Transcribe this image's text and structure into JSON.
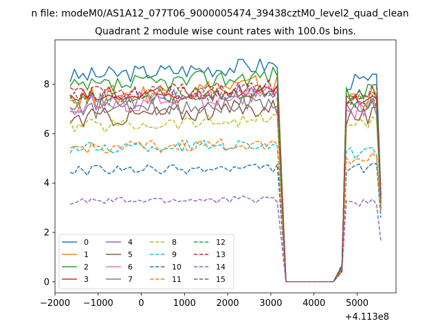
{
  "chart_data": {
    "type": "line",
    "suptitle": "n file: modeM0/AS1A12_077T06_9000005474_39438cztM0_level2_quad_clean",
    "title": "Quadrant 2 module wise count rates with 100.0s bins.",
    "xlabel": "",
    "ylabel": "",
    "x_offset_label": "+4.113e8",
    "xlim": [
      -2000,
      5900
    ],
    "ylim": [
      -0.45,
      9.8
    ],
    "xticks": [
      -2000,
      -1000,
      0,
      1000,
      2000,
      3000,
      4000,
      5000
    ],
    "xtick_labels": [
      "−2000",
      "−1000",
      "0",
      "1000",
      "2000",
      "3000",
      "4000",
      "5000"
    ],
    "yticks": [
      0,
      2,
      4,
      6,
      8
    ],
    "ytick_labels": [
      "0",
      "2",
      "4",
      "6",
      "8"
    ],
    "grid": false,
    "legend_position": "lower-left",
    "legend_columns": 4,
    "segments": {
      "first": {
        "x_start": -1650,
        "x_end": 3150,
        "step": 100
      },
      "drop": {
        "x_end": 3350
      },
      "zero": {
        "x_start": 3350,
        "x_end": 4450
      },
      "second": {
        "x_start": 4650,
        "x_end": 5550,
        "step": 100
      }
    },
    "series": [
      {
        "name": "0",
        "color": "#1f77b4",
        "dashed": false,
        "level": 8.3,
        "noise": 0.35,
        "rise": 0.5,
        "second_level": 8.1,
        "end_value": 3.6
      },
      {
        "name": "1",
        "color": "#ff7f0e",
        "dashed": false,
        "level": 7.4,
        "noise": 0.45,
        "rise": 0.6,
        "second_level": 7.5,
        "end_value": 2.9
      },
      {
        "name": "2",
        "color": "#2ca02c",
        "dashed": false,
        "level": 7.8,
        "noise": 0.4,
        "rise": 0.6,
        "second_level": 7.6,
        "end_value": 3.5
      },
      {
        "name": "3",
        "color": "#d62728",
        "dashed": false,
        "level": 7.4,
        "noise": 0.25,
        "rise": 0.3,
        "second_level": 7.3,
        "end_value": 3.3
      },
      {
        "name": "4",
        "color": "#9467bd",
        "dashed": false,
        "level": 7.2,
        "noise": 0.35,
        "rise": 0.5,
        "second_level": 7.1,
        "end_value": 3.2
      },
      {
        "name": "5",
        "color": "#8c564b",
        "dashed": false,
        "level": 6.6,
        "noise": 0.4,
        "rise": 0.5,
        "second_level": 6.7,
        "end_value": 3.0
      },
      {
        "name": "6",
        "color": "#e377c2",
        "dashed": false,
        "level": 7.1,
        "noise": 0.4,
        "rise": 0.5,
        "second_level": 7.0,
        "end_value": 3.3
      },
      {
        "name": "7",
        "color": "#7f7f7f",
        "dashed": false,
        "level": 6.9,
        "noise": 0.35,
        "rise": 0.4,
        "second_level": 7.0,
        "end_value": 3.1
      },
      {
        "name": "8",
        "color": "#bcbd22",
        "dashed": true,
        "level": 6.3,
        "noise": 0.3,
        "rise": 0.3,
        "second_level": 6.4,
        "end_value": 3.0
      },
      {
        "name": "9",
        "color": "#17becf",
        "dashed": true,
        "level": 5.4,
        "noise": 0.25,
        "rise": 0.2,
        "second_level": 5.2,
        "end_value": 2.9
      },
      {
        "name": "10",
        "color": "#1f77b4",
        "dashed": true,
        "level": 4.5,
        "noise": 0.2,
        "rise": 0.1,
        "second_level": 4.6,
        "end_value": 2.6
      },
      {
        "name": "11",
        "color": "#ff7f0e",
        "dashed": true,
        "level": 5.4,
        "noise": 0.25,
        "rise": 0.2,
        "second_level": 5.0,
        "end_value": 2.9
      },
      {
        "name": "12",
        "color": "#2ca02c",
        "dashed": true,
        "level": 7.4,
        "noise": 0.3,
        "rise": 0.3,
        "second_level": 7.3,
        "end_value": 3.4
      },
      {
        "name": "13",
        "color": "#d62728",
        "dashed": true,
        "level": 7.6,
        "noise": 0.3,
        "rise": 0.3,
        "second_level": 7.4,
        "end_value": 3.5
      },
      {
        "name": "14",
        "color": "#9467bd",
        "dashed": true,
        "level": 3.25,
        "noise": 0.15,
        "rise": 0.1,
        "second_level": 3.2,
        "end_value": 1.65
      },
      {
        "name": "15",
        "color": "#8c564b",
        "dashed": true,
        "level": 7.5,
        "noise": 0.3,
        "rise": 0.3,
        "second_level": 7.7,
        "end_value": 3.2
      }
    ]
  }
}
